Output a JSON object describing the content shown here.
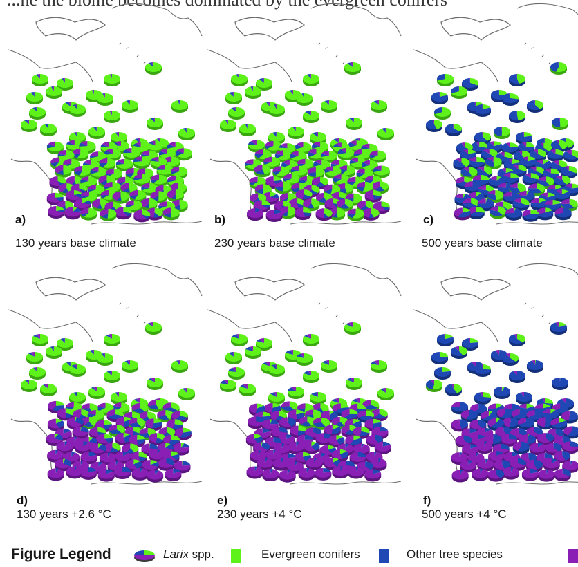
{
  "cut_text": "...ne the biome becomes dominated by the evergreen conifers",
  "colors": {
    "larix": "#5ef21a",
    "evergreen": "#1f48b4",
    "other": "#8a1fb6",
    "coast": "#6a6a6a"
  },
  "panels": [
    {
      "id": "a",
      "label": "a)",
      "caption": "130 years base climate",
      "mix": [
        0.86,
        0.1,
        0.04
      ],
      "purple_south": 0.35,
      "blue_south": 0.12,
      "blue_north": 0.05
    },
    {
      "id": "b",
      "label": "b)",
      "caption": "230 years base climate",
      "mix": [
        0.82,
        0.13,
        0.05
      ],
      "purple_south": 0.38,
      "blue_south": 0.15,
      "blue_north": 0.06
    },
    {
      "id": "c",
      "label": "c)",
      "caption": "500 years base climate",
      "mix": [
        0.45,
        0.5,
        0.05
      ],
      "purple_south": 0.2,
      "blue_south": 0.55,
      "blue_north": 0.55
    },
    {
      "id": "d",
      "label": "d)",
      "caption": "130 years +2.6 °C",
      "mix": [
        0.6,
        0.15,
        0.25
      ],
      "purple_south": 0.7,
      "blue_south": 0.25,
      "blue_north": 0.06
    },
    {
      "id": "e",
      "label": "e)",
      "caption": "230 years +4 °C",
      "mix": [
        0.4,
        0.2,
        0.4
      ],
      "purple_south": 0.85,
      "blue_south": 0.3,
      "blue_north": 0.1
    },
    {
      "id": "f",
      "label": "f)",
      "caption": "500 years +4 °C",
      "mix": [
        0.15,
        0.55,
        0.3
      ],
      "purple_south": 0.75,
      "blue_south": 0.7,
      "blue_north": 0.7
    }
  ],
  "legend": {
    "title": "Figure Legend",
    "items": [
      {
        "label_italic": "Larix",
        "label": "spp.",
        "color": "#5ef21a"
      },
      {
        "label": "Evergreen conifers",
        "color": "#1f48b4"
      },
      {
        "label": "Other tree species",
        "color": "#8a1fb6"
      }
    ]
  }
}
